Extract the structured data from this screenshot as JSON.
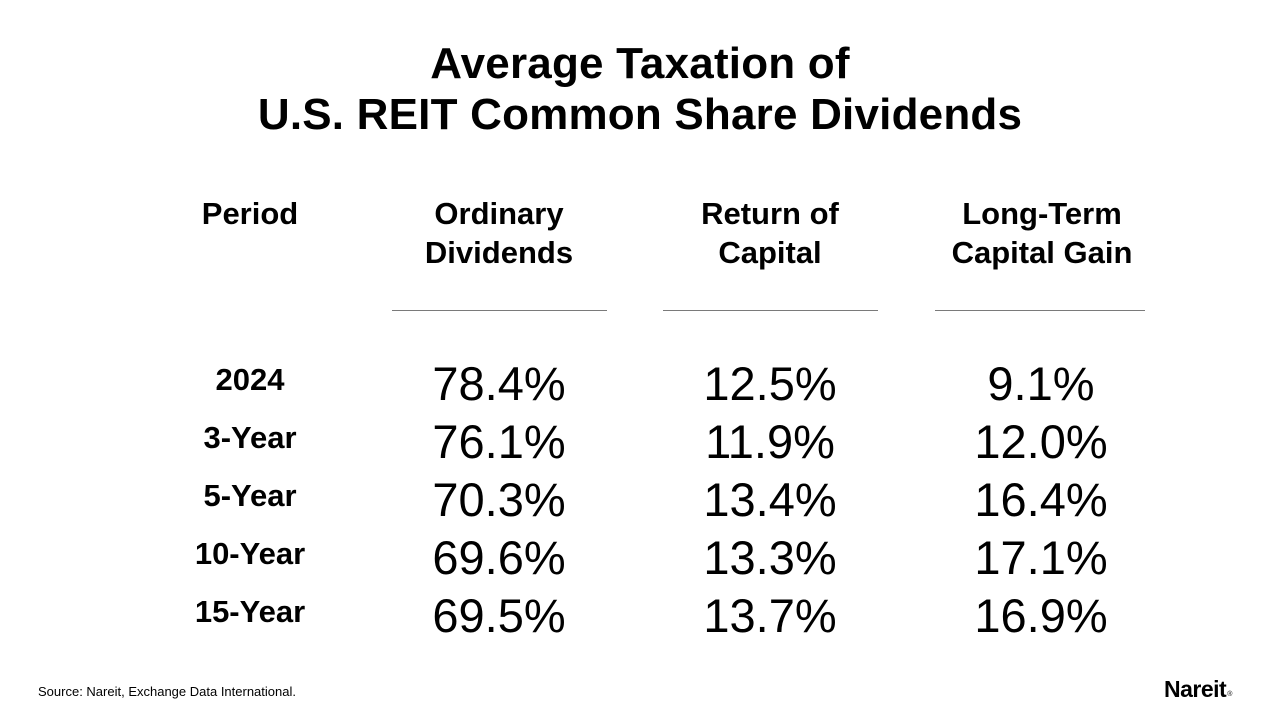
{
  "title": {
    "line1": "Average Taxation of",
    "line2": "U.S. REIT Common Share Dividends"
  },
  "headers": [
    {
      "line1": "Period",
      "line2": ""
    },
    {
      "line1": "Ordinary",
      "line2": "Dividends"
    },
    {
      "line1": "Return of",
      "line2": "Capital"
    },
    {
      "line1": "Long-Term",
      "line2": "Capital Gain"
    }
  ],
  "rows": [
    {
      "period": "2024",
      "ordinary": "78.4%",
      "roc": "12.5%",
      "ltcg": "9.1%"
    },
    {
      "period": "3-Year",
      "ordinary": "76.1%",
      "roc": "11.9%",
      "ltcg": "12.0%"
    },
    {
      "period": "5-Year",
      "ordinary": "70.3%",
      "roc": "13.4%",
      "ltcg": "16.4%"
    },
    {
      "period": "10-Year",
      "ordinary": "69.6%",
      "roc": "13.3%",
      "ltcg": "17.1%"
    },
    {
      "period": "15-Year",
      "ordinary": "69.5%",
      "roc": "13.7%",
      "ltcg": "16.9%"
    }
  ],
  "source": "Source: Nareit, Exchange Data International.",
  "logo": {
    "text": "Nareit",
    "mark": "®"
  }
}
